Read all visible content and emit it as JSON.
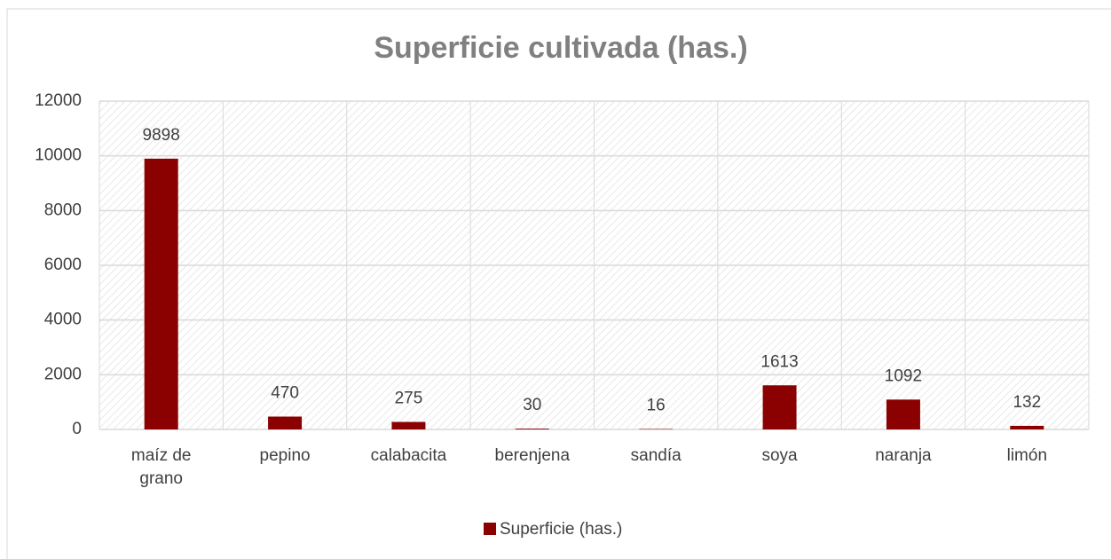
{
  "chart_data": {
    "type": "bar",
    "title": "Superficie cultivada (has.)",
    "categories": [
      "maíz de grano",
      "pepino",
      "calabacita",
      "berenjena",
      "sandía",
      "soya",
      "naranja",
      "limón"
    ],
    "series": [
      {
        "name": "Superficie (has.)",
        "color": "#8b0000",
        "values": [
          9898,
          470,
          275,
          30,
          16,
          1613,
          1092,
          132
        ]
      }
    ],
    "ylim": [
      0,
      12000
    ],
    "yticks": [
      0,
      2000,
      4000,
      6000,
      8000,
      10000,
      12000
    ],
    "grid": true,
    "legend": "bottom"
  }
}
